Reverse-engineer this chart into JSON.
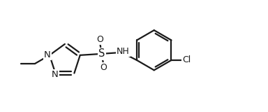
{
  "bg_color": "#ffffff",
  "line_color": "#1a1a1a",
  "line_width": 1.6,
  "font_size": 9.5,
  "figsize": [
    3.84,
    1.6
  ],
  "dpi": 100,
  "xlim": [
    0,
    9.6
  ],
  "ylim": [
    0,
    4.0
  ]
}
